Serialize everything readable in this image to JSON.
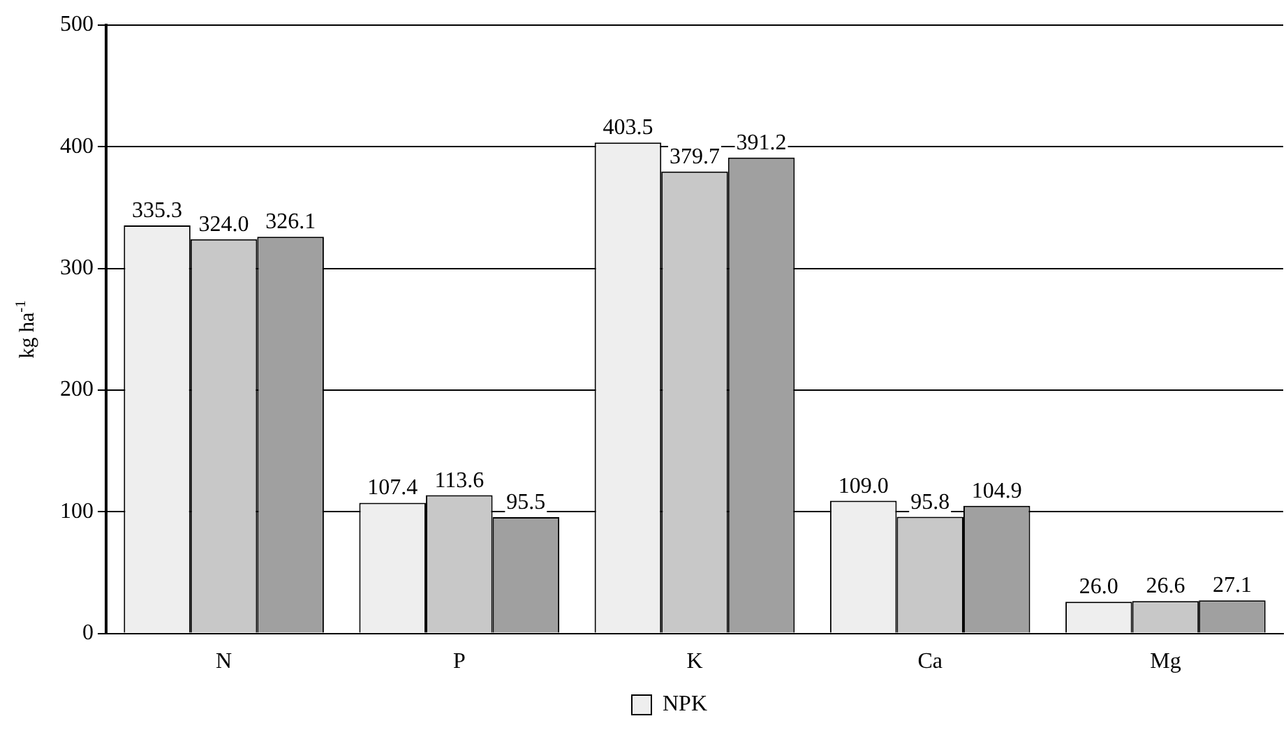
{
  "chart_data": {
    "type": "bar",
    "ylabel": "kg ha$^{-1}$",
    "categories": [
      "N",
      "P",
      "K",
      "Ca",
      "Mg"
    ],
    "series": [
      {
        "name": "NPK",
        "color": "#eeeeee",
        "values": [
          335.3,
          107.4,
          403.5,
          109.0,
          26.0
        ]
      },
      {
        "color": "#c8c8c8",
        "values": [
          324.0,
          113.6,
          379.7,
          95.8,
          26.6
        ]
      },
      {
        "color": "#a0a0a0",
        "values": [
          326.1,
          95.5,
          391.2,
          104.9,
          27.1
        ]
      }
    ],
    "ylim": [
      0,
      500
    ],
    "yticks": [
      0,
      100,
      200,
      300,
      400,
      500
    ],
    "grid": "y",
    "legend": "bottom",
    "value_labels": [
      [
        "335.3",
        "107.4",
        "403.5",
        "109.0",
        "26.0"
      ],
      [
        "324.0",
        "113.6",
        "379.7",
        "95.8",
        "26.6"
      ],
      [
        "326.1",
        "95.5",
        "391.2",
        "104.9",
        "27.1"
      ]
    ]
  }
}
